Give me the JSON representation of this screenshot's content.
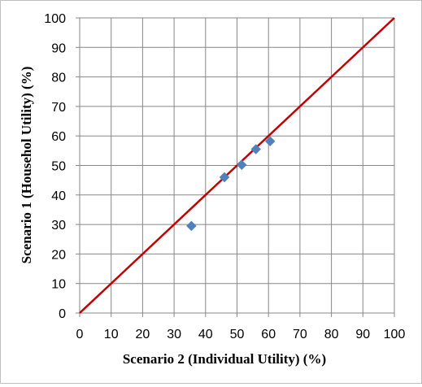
{
  "chart_data": {
    "type": "scatter",
    "title": "",
    "xlabel": "Scenario 2 (Individual Utility) (%)",
    "ylabel": "Scenario 1 (Househol Utility) (%)",
    "xlim": [
      0,
      100
    ],
    "ylim": [
      0,
      100
    ],
    "xticks": [
      "0",
      "10",
      "20",
      "30",
      "40",
      "50",
      "60",
      "70",
      "80",
      "90",
      "100"
    ],
    "yticks": [
      "0",
      "10",
      "20",
      "30",
      "40",
      "50",
      "60",
      "70",
      "80",
      "90",
      "100"
    ],
    "grid": true,
    "legend": "none",
    "series": [
      {
        "kind": "points",
        "marker": "diamond",
        "color": "#4f81bd",
        "points": [
          {
            "x": 35.5,
            "y": 29.5
          },
          {
            "x": 46.0,
            "y": 46.0
          },
          {
            "x": 51.5,
            "y": 50.2
          },
          {
            "x": 56.0,
            "y": 55.5
          },
          {
            "x": 60.5,
            "y": 58.2
          }
        ]
      },
      {
        "kind": "line",
        "color": "#c00000",
        "points": [
          {
            "x": 0,
            "y": 0
          },
          {
            "x": 100,
            "y": 100
          }
        ]
      }
    ]
  },
  "colors": {
    "gridline": "#878787",
    "axis": "#878787",
    "frame": "#bfbfbf"
  }
}
